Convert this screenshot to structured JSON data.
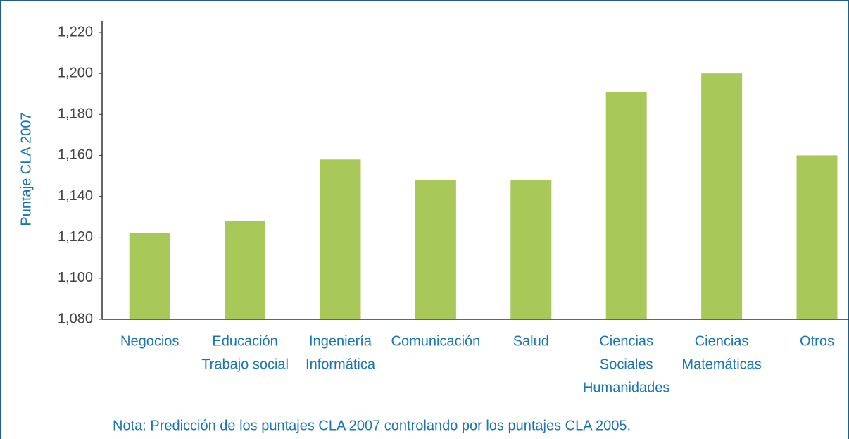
{
  "chart_data": {
    "type": "bar",
    "y_label": "Puntaje CLA 2007",
    "note": "Nota: Predicción de los puntajes CLA 2007 controlando por los puntajes CLA 2005.",
    "categories": [
      [
        "Negocios"
      ],
      [
        "Educación",
        "Trabajo social"
      ],
      [
        "Ingeniería",
        "Informática"
      ],
      [
        "Comunicación"
      ],
      [
        "Salud"
      ],
      [
        "Ciencias",
        "Sociales",
        "Humanidades"
      ],
      [
        "Ciencias",
        "Matemáticas"
      ],
      [
        "Otros"
      ]
    ],
    "values": [
      1122,
      1128,
      1158,
      1148,
      1148,
      1191,
      1200,
      1160
    ],
    "color": "#a8c95a",
    "ylim": [
      1080,
      1220
    ],
    "yticks": [
      {
        "value": 1080,
        "label": "1,080"
      },
      {
        "value": 1100,
        "label": "1,100"
      },
      {
        "value": 1120,
        "label": "1,120"
      },
      {
        "value": 1140,
        "label": "1,140"
      },
      {
        "value": 1160,
        "label": "1,160"
      },
      {
        "value": 1180,
        "label": "1,180"
      },
      {
        "value": 1200,
        "label": "1,200"
      },
      {
        "value": 1220,
        "label": "1,220"
      }
    ],
    "grid": false
  }
}
